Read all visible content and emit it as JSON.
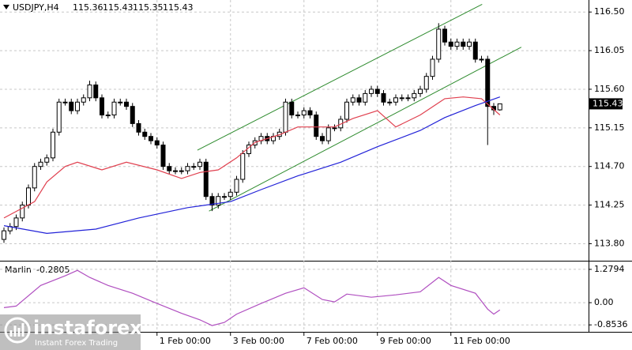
{
  "chart_data": [
    {
      "type": "candlestick",
      "title": "USDJPY,H4",
      "ohlc_header": [
        115.36,
        115.43,
        115.35,
        115.43
      ],
      "categories": [
        null,
        null,
        null,
        null,
        null,
        null,
        null,
        null,
        null,
        null,
        null,
        null,
        null,
        null,
        null,
        null,
        null,
        null,
        null,
        null,
        null,
        null,
        null,
        null,
        null,
        "1 Feb 00:00",
        null,
        null,
        null,
        null,
        null,
        null,
        null,
        null,
        null,
        null,
        null,
        "3 Feb 00:00",
        null,
        null,
        null,
        null,
        null,
        null,
        null,
        null,
        null,
        null,
        null,
        "7 Feb 00:00",
        null,
        null,
        null,
        null,
        null,
        null,
        null,
        null,
        null,
        null,
        null,
        "9 Feb 00:00",
        null,
        null,
        null,
        null,
        null,
        null,
        null,
        null,
        null,
        null,
        null,
        "11 Feb 00:00",
        null,
        null,
        null,
        null,
        null,
        null,
        null,
        null
      ],
      "open": [
        113.85,
        113.95,
        114.0,
        114.1,
        114.25,
        114.45,
        114.7,
        114.75,
        114.8,
        115.1,
        115.45,
        115.45,
        115.35,
        115.45,
        115.5,
        115.65,
        115.5,
        115.3,
        115.3,
        115.45,
        115.45,
        115.4,
        115.2,
        115.1,
        115.05,
        115.0,
        114.95,
        114.7,
        114.65,
        114.65,
        114.65,
        114.7,
        114.7,
        114.75,
        114.35,
        114.25,
        114.35,
        114.35,
        114.4,
        114.55,
        114.85,
        114.95,
        115.0,
        115.05,
        115.0,
        115.05,
        115.1,
        115.45,
        115.3,
        115.3,
        115.35,
        115.3,
        115.05,
        115.0,
        115.15,
        115.15,
        115.25,
        115.45,
        115.5,
        115.45,
        115.55,
        115.6,
        115.55,
        115.45,
        115.45,
        115.5,
        115.5,
        115.5,
        115.55,
        115.6,
        115.75,
        115.95,
        116.3,
        116.15,
        116.1,
        116.15,
        116.1,
        116.15,
        115.95,
        115.95,
        115.4,
        115.36
      ],
      "high": [
        113.99,
        114.04,
        114.14,
        114.29,
        114.49,
        114.74,
        114.79,
        114.84,
        115.14,
        115.49,
        115.49,
        115.49,
        115.49,
        115.54,
        115.7,
        115.69,
        115.54,
        115.34,
        115.49,
        115.49,
        115.49,
        115.44,
        115.24,
        115.14,
        115.09,
        115.04,
        114.99,
        114.74,
        114.69,
        114.69,
        114.74,
        114.74,
        114.79,
        114.79,
        114.39,
        114.39,
        114.39,
        114.44,
        114.59,
        114.89,
        114.99,
        115.04,
        115.09,
        115.09,
        115.09,
        115.14,
        115.49,
        115.49,
        115.34,
        115.39,
        115.39,
        115.34,
        115.09,
        115.19,
        115.19,
        115.29,
        115.49,
        115.54,
        115.54,
        115.59,
        115.64,
        115.64,
        115.59,
        115.49,
        115.54,
        115.54,
        115.54,
        115.59,
        115.64,
        115.79,
        115.99,
        116.37,
        116.34,
        116.19,
        116.19,
        116.19,
        116.19,
        116.19,
        115.99,
        115.99,
        115.44,
        115.43
      ],
      "low": [
        113.81,
        113.91,
        113.96,
        114.06,
        114.21,
        114.41,
        114.66,
        114.71,
        114.76,
        115.06,
        115.41,
        115.31,
        115.31,
        115.41,
        115.46,
        115.46,
        115.26,
        115.26,
        115.26,
        115.41,
        115.36,
        115.16,
        115.06,
        115.01,
        114.96,
        114.91,
        114.66,
        114.61,
        114.61,
        114.61,
        114.61,
        114.66,
        114.66,
        114.31,
        114.18,
        114.21,
        114.31,
        114.31,
        114.36,
        114.51,
        114.81,
        114.91,
        114.96,
        114.96,
        114.96,
        115.01,
        115.06,
        115.26,
        115.26,
        115.26,
        115.26,
        115.01,
        114.96,
        114.96,
        115.11,
        115.11,
        115.21,
        115.41,
        115.41,
        115.41,
        115.51,
        115.51,
        115.41,
        115.41,
        115.41,
        115.46,
        115.46,
        115.46,
        115.51,
        115.56,
        115.71,
        115.91,
        116.11,
        116.06,
        116.06,
        116.06,
        116.06,
        115.91,
        115.91,
        114.95,
        115.3,
        115.35
      ],
      "close": [
        113.95,
        114.0,
        114.1,
        114.25,
        114.45,
        114.7,
        114.75,
        114.8,
        115.1,
        115.45,
        115.45,
        115.35,
        115.45,
        115.5,
        115.65,
        115.5,
        115.3,
        115.3,
        115.45,
        115.45,
        115.4,
        115.2,
        115.1,
        115.05,
        115.0,
        114.95,
        114.7,
        114.65,
        114.65,
        114.65,
        114.7,
        114.7,
        114.75,
        114.35,
        114.25,
        114.35,
        114.35,
        114.4,
        114.55,
        114.85,
        114.95,
        115.0,
        115.05,
        115.0,
        115.05,
        115.1,
        115.45,
        115.3,
        115.3,
        115.35,
        115.3,
        115.05,
        115.0,
        115.15,
        115.15,
        115.25,
        115.45,
        115.5,
        115.45,
        115.55,
        115.6,
        115.55,
        115.45,
        115.45,
        115.5,
        115.5,
        115.5,
        115.55,
        115.6,
        115.75,
        115.95,
        116.3,
        116.15,
        116.1,
        116.15,
        116.1,
        116.15,
        115.95,
        115.95,
        115.4,
        115.36,
        115.43
      ],
      "up_color": "#ffffff",
      "down_color": "#000000",
      "ylim": [
        113.62,
        116.64
      ],
      "yticks": [
        {
          "value": 116.5,
          "label": "116.50"
        },
        116.05,
        {
          "value": 115.6,
          "label": "115.60"
        },
        115.15,
        {
          "value": 114.7,
          "label": "114.70"
        },
        114.25,
        {
          "value": 113.8,
          "label": "113.80"
        }
      ],
      "last_price": 115.43,
      "grid": true,
      "lines": [
        {
          "color": "#e0404f",
          "x": [
            0,
            5,
            7,
            10,
            12,
            16,
            20,
            25,
            29,
            32,
            35,
            38,
            41,
            45,
            48,
            54,
            57,
            61,
            64,
            68,
            72,
            75,
            78,
            81
          ],
          "values": [
            114.1,
            114.29,
            114.52,
            114.7,
            114.75,
            114.66,
            114.75,
            114.66,
            114.56,
            114.63,
            114.66,
            114.8,
            114.98,
            115.07,
            115.16,
            115.16,
            115.26,
            115.35,
            115.16,
            115.3,
            115.49,
            115.51,
            115.49,
            115.3
          ]
        },
        {
          "color": "#2222d8",
          "x": [
            0,
            7,
            15,
            22,
            30,
            37,
            42,
            48,
            55,
            61,
            68,
            72,
            77,
            81
          ],
          "values": [
            114.01,
            113.92,
            113.97,
            114.1,
            114.22,
            114.29,
            114.43,
            114.59,
            114.75,
            114.93,
            115.12,
            115.27,
            115.41,
            115.51
          ]
        }
      ],
      "trendlines": [
        {
          "color": "#2e8b2e",
          "x": [
            31.6,
            78.1
          ],
          "values": [
            114.89,
            116.59
          ]
        },
        {
          "color": "#2e8b2e",
          "x": [
            33.5,
            84.5
          ],
          "values": [
            114.18,
            116.09
          ]
        }
      ]
    },
    {
      "type": "line",
      "title": "Marlin",
      "last_value": -0.2805,
      "color": "#b04fc0",
      "x": [
        0,
        2,
        6,
        10,
        12,
        14,
        17,
        21,
        25,
        29,
        32,
        34,
        36,
        38,
        42,
        46,
        49,
        52,
        54,
        56,
        60,
        64,
        68,
        71,
        73,
        77,
        79,
        80,
        81
      ],
      "values": [
        -0.19,
        -0.13,
        0.66,
        1.03,
        1.24,
        0.97,
        0.66,
        0.36,
        -0.03,
        -0.41,
        -0.66,
        -0.88,
        -0.76,
        -0.44,
        -0.03,
        0.36,
        0.57,
        0.12,
        0.03,
        0.33,
        0.21,
        0.3,
        0.42,
        0.97,
        0.66,
        0.36,
        -0.25,
        -0.44,
        -0.2805
      ],
      "ylim": [
        -1.12,
        1.52
      ],
      "yticks": [
        1.2794,
        {
          "value": 0,
          "label": "0.00"
        },
        -0.8536
      ],
      "grid": true
    }
  ],
  "watermark": {
    "brand": "instaforex",
    "tagline": "Instant Forex Trading"
  }
}
